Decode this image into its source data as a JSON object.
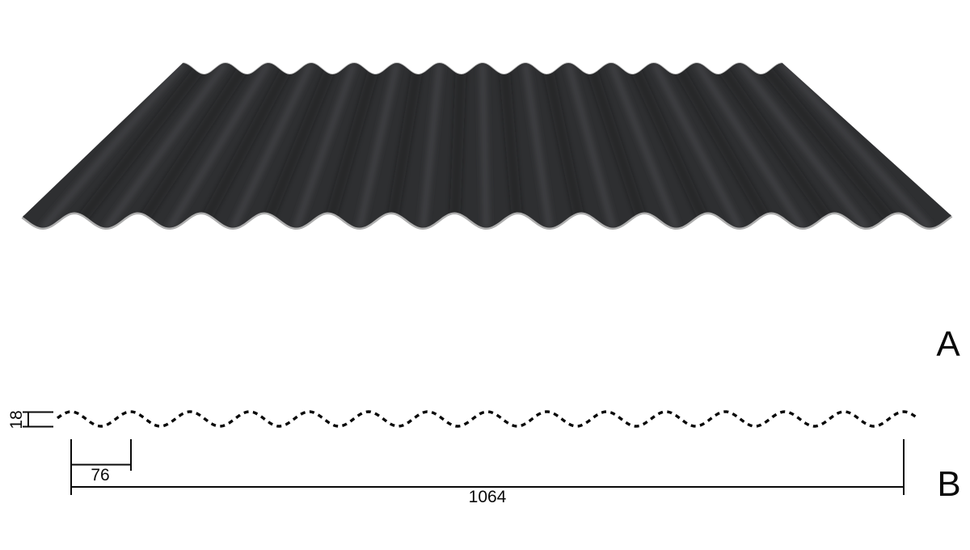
{
  "drawing": {
    "view_a": {
      "label": "A"
    },
    "view_b": {
      "label": "B"
    },
    "dimensions": {
      "profile_height": "18",
      "pitch": "76",
      "total_width": "1064"
    }
  },
  "colors": {
    "background": "#ffffff",
    "line": "#0a0a0a",
    "sheet_body": "#2e2f31",
    "sheet_ridge_highlight": "#4b4c50",
    "sheet_valley_shadow": "#1c1d1f",
    "sheet_edge_trim": "#aeaeae",
    "sheet_far_edge_trim": "#9a9a9a"
  }
}
